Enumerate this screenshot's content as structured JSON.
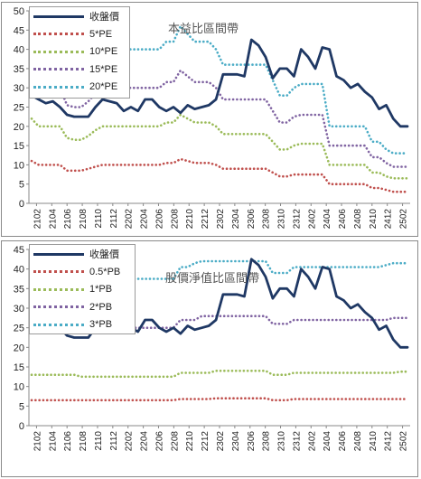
{
  "chart_data": [
    {
      "type": "line",
      "title": "本益比區間帶",
      "ylim": [
        0,
        50
      ],
      "yticks": [
        0,
        5,
        10,
        15,
        20,
        25,
        30,
        35,
        40,
        45,
        50
      ],
      "xtick_labels": [
        "2102",
        "2104",
        "2106",
        "2108",
        "2110",
        "2112",
        "2202",
        "2204",
        "2206",
        "2208",
        "2210",
        "2212",
        "2302",
        "2304",
        "2306",
        "2308",
        "2310",
        "2312",
        "2402",
        "2404",
        "2406",
        "2408",
        "2410",
        "2412",
        "2502"
      ],
      "legend_position": "top-left",
      "grid": false,
      "series": [
        {
          "name": "收盤價",
          "color": "#1f3864",
          "style": "solid",
          "values": [
            28,
            27,
            26,
            26.5,
            25,
            23,
            22.5,
            22.5,
            22.5,
            25,
            27,
            26.5,
            26,
            24,
            25,
            24,
            27,
            27,
            25,
            24,
            25,
            23.5,
            25.5,
            24.5,
            25,
            25.5,
            27,
            33.5,
            33.5,
            33.5,
            33,
            42.5,
            41,
            38,
            32.5,
            35,
            35,
            33,
            40,
            38,
            35,
            40.5,
            40,
            33,
            32,
            30,
            31,
            29,
            27.5,
            24.5,
            25.5,
            22,
            20,
            20
          ]
        },
        {
          "name": "5*PE",
          "color": "#c0504d",
          "style": "dotted",
          "values": [
            11,
            10,
            10,
            10,
            10,
            8.5,
            8.5,
            8.5,
            9,
            9.5,
            10,
            10,
            10,
            10,
            10,
            10,
            10,
            10,
            10,
            10.5,
            10.5,
            11.5,
            11,
            10.5,
            10.5,
            10.5,
            10,
            9,
            9,
            9,
            9,
            9,
            9,
            9,
            8,
            7,
            7,
            7.5,
            7.5,
            7.5,
            7.5,
            7.5,
            5,
            5,
            5,
            5,
            5,
            5,
            4,
            4,
            3.5,
            3,
            3,
            3
          ]
        },
        {
          "name": "10*PE",
          "color": "#9bbb59",
          "style": "dotted",
          "values": [
            22,
            20,
            20,
            20,
            20,
            17,
            16.5,
            16.5,
            17.5,
            19,
            20,
            20,
            20,
            20,
            20,
            20,
            20,
            20,
            20,
            21,
            21,
            23,
            22,
            21,
            21,
            21,
            20,
            18,
            18,
            18,
            18,
            18,
            18,
            18,
            16,
            14,
            14,
            15,
            15.5,
            15.5,
            15.5,
            15.5,
            10,
            10,
            10,
            10,
            10,
            10,
            8,
            8,
            7,
            6.5,
            6.5,
            6.5
          ]
        },
        {
          "name": "15*PE",
          "color": "#8064a2",
          "style": "dotted",
          "values": [
            33,
            30,
            30,
            30,
            30,
            25.5,
            25,
            25,
            26.5,
            28.5,
            30,
            30,
            30,
            30,
            30,
            30,
            30,
            30,
            30,
            31.5,
            31.5,
            34.5,
            33,
            31.5,
            31.5,
            31.5,
            30,
            27,
            27,
            27,
            27,
            27,
            27,
            27,
            24,
            21,
            21,
            22.5,
            23,
            23,
            23,
            23,
            15,
            15,
            15,
            15,
            15,
            15,
            12,
            12,
            10.5,
            9.5,
            9.5,
            9.5
          ]
        },
        {
          "name": "20*PE",
          "color": "#4bacc6",
          "style": "dotted",
          "values": [
            44,
            40,
            40,
            40,
            40,
            34,
            33,
            33,
            35,
            38,
            40,
            40,
            40,
            40,
            40,
            40,
            40,
            40,
            40,
            42,
            42,
            46,
            44,
            42,
            42,
            42,
            40,
            36,
            36,
            36,
            36,
            36,
            36,
            36,
            32,
            28,
            28,
            30,
            31,
            31,
            31,
            31,
            20,
            20,
            20,
            20,
            20,
            20,
            16,
            16,
            14,
            13,
            13,
            13
          ]
        }
      ]
    },
    {
      "type": "line",
      "title": "股價淨值比區間帶",
      "ylim": [
        0,
        45
      ],
      "yticks": [
        0,
        5,
        10,
        15,
        20,
        25,
        30,
        35,
        40,
        45
      ],
      "xtick_labels": [
        "2102",
        "2104",
        "2106",
        "2108",
        "2110",
        "2112",
        "2202",
        "2204",
        "2206",
        "2208",
        "2210",
        "2212",
        "2302",
        "2304",
        "2306",
        "2308",
        "2310",
        "2312",
        "2402",
        "2404",
        "2406",
        "2408",
        "2410",
        "2412",
        "2502"
      ],
      "legend_position": "top-left",
      "grid": false,
      "series": [
        {
          "name": "收盤價",
          "color": "#1f3864",
          "style": "solid",
          "values": [
            28,
            27,
            26,
            26.5,
            25,
            23,
            22.5,
            22.5,
            22.5,
            25,
            27,
            26.5,
            26,
            24,
            25,
            24,
            27,
            27,
            25,
            24,
            25,
            23.5,
            25.5,
            24.5,
            25,
            25.5,
            27,
            33.5,
            33.5,
            33.5,
            33,
            42.5,
            41,
            38,
            32.5,
            35,
            35,
            33,
            40,
            38,
            35,
            40.5,
            40,
            33,
            32,
            30,
            31,
            29,
            27.5,
            24.5,
            25.5,
            22,
            20,
            20
          ]
        },
        {
          "name": "0.5*PB",
          "color": "#c0504d",
          "style": "dotted",
          "values": [
            6.5,
            6.5,
            6.5,
            6.5,
            6.5,
            6.5,
            6.5,
            6.5,
            6.5,
            6.5,
            6.5,
            6.5,
            6.5,
            6.5,
            6.5,
            6.5,
            6.5,
            6.5,
            6.5,
            6.5,
            6.5,
            6.8,
            6.8,
            6.8,
            6.8,
            6.8,
            7,
            7,
            7,
            7,
            7,
            7,
            7,
            7,
            6.5,
            6.5,
            6.5,
            6.8,
            6.8,
            6.8,
            6.8,
            6.8,
            6.8,
            6.8,
            6.8,
            6.8,
            6.8,
            6.8,
            6.8,
            6.8,
            6.8,
            6.8,
            6.8,
            6.8
          ]
        },
        {
          "name": "1*PB",
          "color": "#9bbb59",
          "style": "dotted",
          "values": [
            13,
            13,
            13,
            13,
            13,
            13,
            13,
            12.5,
            12.5,
            12.5,
            12.5,
            12.5,
            12.5,
            12.5,
            12.5,
            12.5,
            12.5,
            12.5,
            12.5,
            12.5,
            12.5,
            13.5,
            13.5,
            13.5,
            13.5,
            13.5,
            14,
            14,
            14,
            14,
            14,
            14,
            14,
            14,
            13,
            13,
            13,
            13.5,
            13.5,
            13.5,
            13.5,
            13.5,
            13.5,
            13.5,
            13.5,
            13.5,
            13.5,
            13.5,
            13.5,
            13.5,
            13.5,
            13.5,
            13.8,
            13.8
          ]
        },
        {
          "name": "2*PB",
          "color": "#8064a2",
          "style": "dotted",
          "values": [
            26,
            26,
            26,
            26,
            26,
            26,
            26,
            25,
            25,
            25,
            25,
            25,
            25,
            25,
            25,
            25,
            25,
            25,
            25,
            25,
            25,
            27,
            27,
            27,
            28,
            28,
            28,
            28,
            28,
            28,
            28,
            28,
            28,
            28,
            26,
            26,
            26,
            27,
            27,
            27,
            27,
            27,
            27,
            27,
            27,
            27,
            27,
            27,
            27,
            27,
            27,
            27.5,
            27.5,
            27.5
          ]
        },
        {
          "name": "3*PB",
          "color": "#4bacc6",
          "style": "dotted",
          "values": [
            39,
            39,
            39,
            39,
            39,
            39,
            39,
            37.5,
            37.5,
            37.5,
            37.5,
            37.5,
            37.5,
            37.5,
            37.5,
            37.5,
            37.5,
            37.5,
            37.5,
            37.5,
            37.5,
            40.5,
            40.5,
            41.5,
            42,
            42,
            42,
            42,
            42,
            42,
            42,
            42,
            42,
            42,
            39,
            39,
            39,
            40.5,
            40.5,
            40.5,
            40.5,
            40.5,
            40.5,
            40.5,
            40.5,
            40.5,
            40.5,
            40.5,
            40.5,
            40.5,
            41,
            41.5,
            41.5,
            41.5
          ]
        }
      ]
    }
  ]
}
